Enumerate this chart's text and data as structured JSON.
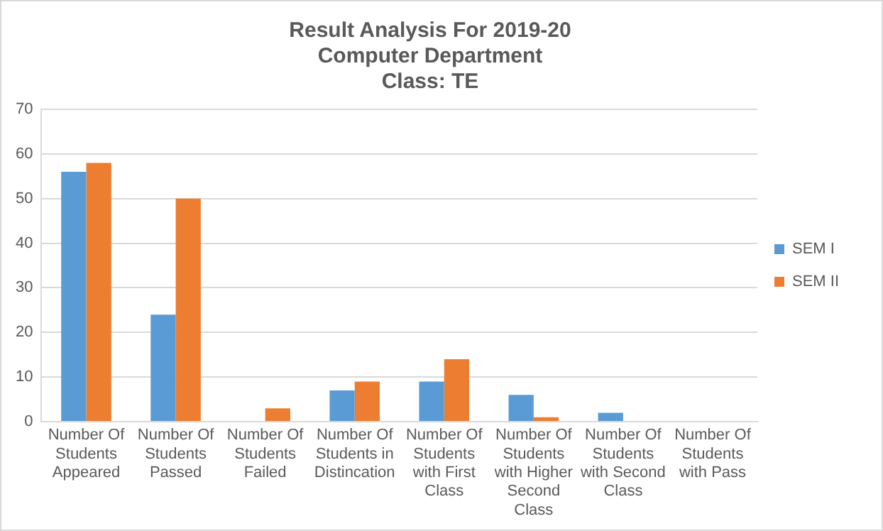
{
  "chart_data": {
    "type": "bar",
    "title": "Result Analysis For 2019-20\nComputer Department\nClass: TE",
    "categories": [
      "Number Of Students Appeared",
      "Number Of Students Passed",
      "Number Of Students Failed",
      "Number Of Students in Distincation",
      "Number Of Students with First Class",
      "Number Of Students with Higher Second Class",
      "Number Of Students with Second Class",
      "Number Of Students with Pass"
    ],
    "series": [
      {
        "name": "SEM I",
        "color": "#5b9bd5",
        "values": [
          56,
          24,
          0,
          7,
          9,
          6,
          2,
          0
        ]
      },
      {
        "name": "SEM II",
        "color": "#ed7d31",
        "values": [
          58,
          50,
          3,
          9,
          14,
          1,
          0,
          0
        ]
      }
    ],
    "ylim": [
      0,
      70
    ],
    "yticks": [
      0,
      10,
      20,
      30,
      40,
      50,
      60,
      70
    ],
    "grid": "y",
    "legend": "right"
  }
}
